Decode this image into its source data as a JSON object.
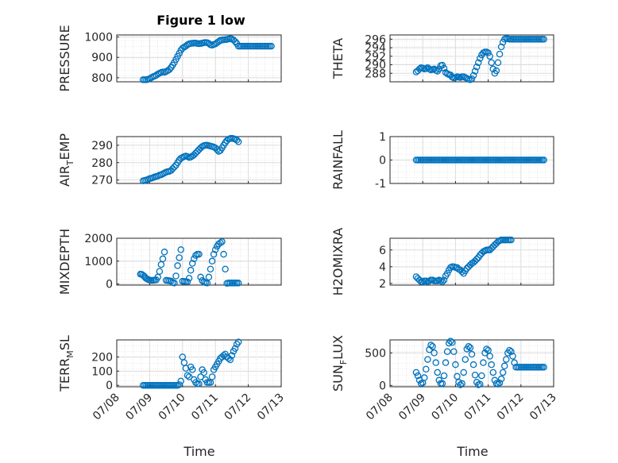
{
  "figure": {
    "title": "Figure 1 low",
    "xlabel": "Time",
    "x_tick_labels": [
      "07/08",
      "07/09",
      "07/10",
      "07/11",
      "07/12",
      "07/13"
    ],
    "marker_color": "#0072BD",
    "grid": true
  },
  "chart_data": [
    {
      "type": "scatter",
      "ylabel_main": "PRESSURE",
      "ylabel_sub": "",
      "ylabel_rest": "",
      "ylim": [
        780,
        1010
      ],
      "yticks": [
        800,
        900,
        1000
      ],
      "x": [
        0.8,
        0.85,
        0.9,
        0.95,
        1.0,
        1.05,
        1.1,
        1.15,
        1.2,
        1.25,
        1.3,
        1.35,
        1.4,
        1.45,
        1.5,
        1.55,
        1.6,
        1.65,
        1.7,
        1.75,
        1.8,
        1.85,
        1.9,
        1.95,
        2.0,
        2.05,
        2.1,
        2.15,
        2.2,
        2.25,
        2.3,
        2.35,
        2.4,
        2.45,
        2.5,
        2.55,
        2.6,
        2.65,
        2.7,
        2.75,
        2.8,
        2.85,
        2.9,
        2.95,
        3.0,
        3.05,
        3.1,
        3.15,
        3.2,
        3.25,
        3.3,
        3.35,
        3.4,
        3.45,
        3.5,
        3.55,
        3.6,
        3.65,
        3.7,
        3.75,
        3.8,
        3.85,
        3.9,
        3.95,
        4.0,
        4.05,
        4.1,
        4.15,
        4.2,
        4.25,
        4.3,
        4.35,
        4.4,
        4.45,
        4.5,
        4.55,
        4.6,
        4.65,
        4.7
      ],
      "y": [
        790,
        790,
        790,
        792,
        795,
        800,
        805,
        808,
        812,
        818,
        822,
        826,
        828,
        827,
        830,
        835,
        840,
        850,
        862,
        875,
        890,
        905,
        920,
        935,
        945,
        950,
        955,
        962,
        966,
        968,
        969,
        970,
        970,
        968,
        967,
        968,
        970,
        972,
        973,
        972,
        968,
        962,
        960,
        963,
        966,
        972,
        978,
        983,
        985,
        986,
        987,
        988,
        990,
        992,
        990,
        985,
        978,
        968,
        955,
        955,
        955,
        955,
        955,
        955,
        955,
        955,
        955,
        955,
        955,
        955,
        955,
        955,
        955,
        955,
        955,
        955,
        955,
        955,
        955
      ]
    },
    {
      "type": "scatter",
      "ylabel_main": "THETA",
      "ylabel_sub": "",
      "ylabel_rest": "",
      "ylim": [
        286,
        297
      ],
      "yticks": [
        288,
        290,
        292,
        294,
        296
      ],
      "x": [
        0.8,
        0.85,
        0.9,
        0.95,
        1.0,
        1.05,
        1.1,
        1.15,
        1.2,
        1.25,
        1.3,
        1.35,
        1.4,
        1.45,
        1.5,
        1.55,
        1.6,
        1.65,
        1.7,
        1.75,
        1.8,
        1.85,
        1.9,
        1.95,
        2.0,
        2.05,
        2.1,
        2.15,
        2.2,
        2.25,
        2.3,
        2.35,
        2.4,
        2.45,
        2.5,
        2.55,
        2.6,
        2.65,
        2.7,
        2.75,
        2.8,
        2.85,
        2.9,
        2.95,
        3.0,
        3.05,
        3.1,
        3.15,
        3.2,
        3.25,
        3.3,
        3.35,
        3.4,
        3.45,
        3.5,
        3.55,
        3.6,
        3.65,
        3.7,
        3.75,
        3.8,
        3.85,
        3.9,
        3.95,
        4.0,
        4.05,
        4.1,
        4.15,
        4.2,
        4.25,
        4.3,
        4.35,
        4.4,
        4.45,
        4.5,
        4.55,
        4.6,
        4.65,
        4.7
      ],
      "y": [
        288.3,
        288.6,
        289.0,
        289.3,
        289.2,
        289.0,
        289.1,
        289.3,
        289.0,
        288.8,
        288.9,
        289.0,
        288.7,
        288.5,
        289.0,
        289.8,
        289.9,
        289.2,
        288.2,
        287.9,
        287.7,
        287.6,
        287.1,
        286.9,
        287.0,
        287.2,
        287.1,
        287.0,
        287.2,
        287.2,
        287.0,
        286.8,
        286.6,
        286.5,
        286.7,
        287.5,
        288.5,
        289.5,
        290.5,
        291.5,
        292.3,
        292.8,
        293.0,
        293.0,
        292.8,
        292.0,
        290.5,
        289.0,
        288.0,
        288.6,
        290.5,
        292.5,
        294.2,
        295.3,
        296.0,
        296.2,
        296.1,
        296.0,
        296.0,
        296.0,
        296.0,
        296.0,
        296.0,
        296.0,
        296.0,
        296.0,
        296.0,
        296.0,
        296.0,
        296.0,
        296.0,
        296.0,
        296.0,
        296.0,
        296.0,
        296.0,
        296.0,
        296.0,
        296.0
      ]
    },
    {
      "type": "scatter",
      "ylabel_main": "AIR",
      "ylabel_sub": "T",
      "ylabel_rest": "EMP",
      "ylim": [
        268,
        295
      ],
      "yticks": [
        270,
        280,
        290
      ],
      "x": [
        0.8,
        0.85,
        0.9,
        0.95,
        1.0,
        1.05,
        1.1,
        1.15,
        1.2,
        1.25,
        1.3,
        1.35,
        1.4,
        1.45,
        1.5,
        1.55,
        1.6,
        1.65,
        1.7,
        1.75,
        1.8,
        1.85,
        1.9,
        1.95,
        2.0,
        2.05,
        2.1,
        2.15,
        2.2,
        2.25,
        2.3,
        2.35,
        2.4,
        2.45,
        2.5,
        2.55,
        2.6,
        2.65,
        2.7,
        2.75,
        2.8,
        2.85,
        2.9,
        2.95,
        3.0,
        3.05,
        3.1,
        3.15,
        3.2,
        3.25,
        3.3,
        3.35,
        3.4,
        3.45,
        3.5,
        3.55,
        3.6,
        3.65,
        3.7
      ],
      "y": [
        269.5,
        269.8,
        270.0,
        270.3,
        270.8,
        271.0,
        271.3,
        271.8,
        272.0,
        272.3,
        272.8,
        273.0,
        273.5,
        274.0,
        274.5,
        274.8,
        275.0,
        275.5,
        276.5,
        277.5,
        278.5,
        280.0,
        281.5,
        282.5,
        283.0,
        283.5,
        283.8,
        283.5,
        283.0,
        283.2,
        283.8,
        284.5,
        285.5,
        286.5,
        287.5,
        288.5,
        289.3,
        289.8,
        290.0,
        290.0,
        289.8,
        289.5,
        289.3,
        289.0,
        288.5,
        287.5,
        286.5,
        287.0,
        288.5,
        290.0,
        291.5,
        292.7,
        293.5,
        293.9,
        294.0,
        293.8,
        293.5,
        293.0,
        292.0
      ]
    },
    {
      "type": "scatter",
      "ylabel_main": "RAINFALL",
      "ylabel_sub": "",
      "ylabel_rest": "",
      "ylim": [
        -1,
        1
      ],
      "yticks": [
        -1,
        0,
        1
      ],
      "x": [
        0.8,
        0.85,
        0.9,
        0.95,
        1.0,
        1.05,
        1.1,
        1.15,
        1.2,
        1.25,
        1.3,
        1.35,
        1.4,
        1.45,
        1.5,
        1.55,
        1.6,
        1.65,
        1.7,
        1.75,
        1.8,
        1.85,
        1.9,
        1.95,
        2.0,
        2.05,
        2.1,
        2.15,
        2.2,
        2.25,
        2.3,
        2.35,
        2.4,
        2.45,
        2.5,
        2.55,
        2.6,
        2.65,
        2.7,
        2.75,
        2.8,
        2.85,
        2.9,
        2.95,
        3.0,
        3.05,
        3.1,
        3.15,
        3.2,
        3.25,
        3.3,
        3.35,
        3.4,
        3.45,
        3.5,
        3.55,
        3.6,
        3.65,
        3.7,
        3.75,
        3.8,
        3.85,
        3.9,
        3.95,
        4.0,
        4.05,
        4.1,
        4.15,
        4.2,
        4.25,
        4.3,
        4.35,
        4.4,
        4.45,
        4.5,
        4.55,
        4.6,
        4.65,
        4.7
      ],
      "y": [
        0,
        0,
        0,
        0,
        0,
        0,
        0,
        0,
        0,
        0,
        0,
        0,
        0,
        0,
        0,
        0,
        0,
        0,
        0,
        0,
        0,
        0,
        0,
        0,
        0,
        0,
        0,
        0,
        0,
        0,
        0,
        0,
        0,
        0,
        0,
        0,
        0,
        0,
        0,
        0,
        0,
        0,
        0,
        0,
        0,
        0,
        0,
        0,
        0,
        0,
        0,
        0,
        0,
        0,
        0,
        0,
        0,
        0,
        0,
        0,
        0,
        0,
        0,
        0,
        0,
        0,
        0,
        0,
        0,
        0,
        0,
        0,
        0,
        0,
        0,
        0,
        0,
        0,
        0
      ]
    },
    {
      "type": "scatter",
      "ylabel_main": "MIXDEPTH",
      "ylabel_sub": "",
      "ylabel_rest": "",
      "ylim": [
        -50,
        2000
      ],
      "yticks": [
        0,
        1000,
        2000
      ],
      "x": [
        0.72,
        0.76,
        0.8,
        0.84,
        0.88,
        0.92,
        0.96,
        1.0,
        1.05,
        1.1,
        1.15,
        1.2,
        1.25,
        1.3,
        1.35,
        1.4,
        1.45,
        1.5,
        1.55,
        1.6,
        1.65,
        1.7,
        1.75,
        1.8,
        1.85,
        1.9,
        1.95,
        2.0,
        2.05,
        2.1,
        2.15,
        2.2,
        2.25,
        2.3,
        2.35,
        2.4,
        2.45,
        2.5,
        2.55,
        2.6,
        2.65,
        2.7,
        2.75,
        2.8,
        2.85,
        2.9,
        2.95,
        3.0,
        3.05,
        3.1,
        3.15,
        3.2,
        3.25,
        3.3,
        3.35,
        3.4,
        3.45,
        3.5,
        3.55,
        3.6,
        3.65,
        3.7
      ],
      "y": [
        430,
        420,
        380,
        330,
        260,
        220,
        190,
        170,
        160,
        160,
        170,
        180,
        300,
        550,
        850,
        1100,
        1400,
        160,
        150,
        140,
        130,
        60,
        40,
        350,
        800,
        1150,
        1500,
        120,
        110,
        100,
        95,
        250,
        600,
        900,
        1100,
        1250,
        1300,
        1300,
        300,
        150,
        80,
        60,
        40,
        300,
        650,
        1000,
        1300,
        1500,
        1650,
        1750,
        1800,
        1850,
        1300,
        650,
        30,
        40,
        40,
        40,
        40,
        40,
        40,
        40
      ]
    },
    {
      "type": "scatter",
      "ylabel_main": "H2OMIXRA",
      "ylabel_sub": "",
      "ylabel_rest": "",
      "ylim": [
        1.8,
        7.4
      ],
      "yticks": [
        2,
        4,
        6
      ],
      "x": [
        0.8,
        0.85,
        0.9,
        0.95,
        1.0,
        1.05,
        1.1,
        1.15,
        1.2,
        1.25,
        1.3,
        1.35,
        1.4,
        1.45,
        1.5,
        1.55,
        1.6,
        1.65,
        1.7,
        1.75,
        1.8,
        1.85,
        1.9,
        1.95,
        2.0,
        2.05,
        2.1,
        2.15,
        2.2,
        2.25,
        2.3,
        2.35,
        2.4,
        2.45,
        2.5,
        2.55,
        2.6,
        2.65,
        2.7,
        2.75,
        2.8,
        2.85,
        2.9,
        2.95,
        3.0,
        3.05,
        3.1,
        3.15,
        3.2,
        3.25,
        3.3,
        3.35,
        3.4,
        3.45,
        3.5,
        3.55,
        3.6,
        3.65,
        3.7
      ],
      "y": [
        2.8,
        2.6,
        2.4,
        2.2,
        2.2,
        2.3,
        2.3,
        2.2,
        2.3,
        2.4,
        2.4,
        2.3,
        2.3,
        2.3,
        2.4,
        2.3,
        2.2,
        2.4,
        2.9,
        3.2,
        3.6,
        3.9,
        4.0,
        4.0,
        3.9,
        3.9,
        3.7,
        3.6,
        3.4,
        3.2,
        3.5,
        3.8,
        4.0,
        4.2,
        4.4,
        4.5,
        4.7,
        4.9,
        5.1,
        5.4,
        5.6,
        5.8,
        5.9,
        6.0,
        6.0,
        6.0,
        6.2,
        6.4,
        6.6,
        6.8,
        7.0,
        7.1,
        7.2,
        7.2,
        7.2,
        7.2,
        7.2,
        7.2,
        7.2
      ]
    },
    {
      "type": "scatter",
      "ylabel_main": "TERR",
      "ylabel_sub": "M",
      "ylabel_rest": "SL",
      "ylim": [
        -10,
        320
      ],
      "yticks": [
        0,
        100,
        200
      ],
      "x": [
        0.8,
        0.85,
        0.9,
        0.95,
        1.0,
        1.05,
        1.1,
        1.15,
        1.2,
        1.25,
        1.3,
        1.35,
        1.4,
        1.45,
        1.5,
        1.55,
        1.6,
        1.65,
        1.7,
        1.75,
        1.8,
        1.85,
        1.9,
        1.95,
        2.0,
        2.05,
        2.1,
        2.15,
        2.2,
        2.25,
        2.3,
        2.35,
        2.4,
        2.45,
        2.5,
        2.55,
        2.6,
        2.65,
        2.7,
        2.75,
        2.8,
        2.85,
        2.9,
        2.95,
        3.0,
        3.05,
        3.1,
        3.15,
        3.2,
        3.25,
        3.3,
        3.35,
        3.4,
        3.45,
        3.5,
        3.55,
        3.6,
        3.65,
        3.7
      ],
      "y": [
        0,
        0,
        0,
        0,
        0,
        0,
        0,
        0,
        0,
        0,
        0,
        0,
        0,
        0,
        0,
        0,
        0,
        0,
        0,
        0,
        0,
        0,
        5,
        30,
        200,
        160,
        120,
        70,
        60,
        130,
        110,
        40,
        20,
        10,
        10,
        60,
        110,
        90,
        40,
        20,
        20,
        20,
        60,
        110,
        130,
        150,
        170,
        190,
        200,
        210,
        220,
        200,
        190,
        180,
        210,
        240,
        260,
        290,
        305
      ]
    },
    {
      "type": "scatter",
      "ylabel_main": "SUN",
      "ylabel_sub": "F",
      "ylabel_rest": "LUX",
      "ylim": [
        -20,
        700
      ],
      "yticks": [
        0,
        500
      ],
      "x": [
        0.8,
        0.85,
        0.9,
        0.95,
        1.0,
        1.05,
        1.1,
        1.15,
        1.2,
        1.25,
        1.3,
        1.35,
        1.4,
        1.45,
        1.5,
        1.55,
        1.6,
        1.65,
        1.7,
        1.75,
        1.8,
        1.85,
        1.9,
        1.95,
        2.0,
        2.05,
        2.1,
        2.15,
        2.2,
        2.25,
        2.3,
        2.35,
        2.4,
        2.45,
        2.5,
        2.55,
        2.6,
        2.65,
        2.7,
        2.75,
        2.8,
        2.85,
        2.9,
        2.95,
        3.0,
        3.05,
        3.1,
        3.15,
        3.2,
        3.25,
        3.3,
        3.35,
        3.4,
        3.45,
        3.5,
        3.55,
        3.6,
        3.65,
        3.7,
        3.75,
        3.8,
        3.85,
        3.9,
        3.95,
        4.0,
        4.05,
        4.1,
        4.15,
        4.2,
        4.25,
        4.3,
        4.35,
        4.4,
        4.45,
        4.5,
        4.55,
        4.6,
        4.65,
        4.7
      ],
      "y": [
        200,
        150,
        80,
        30,
        40,
        120,
        250,
        400,
        550,
        620,
        600,
        500,
        350,
        200,
        80,
        30,
        30,
        150,
        350,
        520,
        650,
        680,
        660,
        520,
        320,
        140,
        50,
        10,
        30,
        200,
        400,
        560,
        600,
        580,
        480,
        320,
        160,
        50,
        10,
        20,
        150,
        350,
        500,
        560,
        540,
        450,
        320,
        200,
        80,
        30,
        20,
        40,
        100,
        200,
        300,
        400,
        500,
        540,
        520,
        450,
        350,
        280,
        280,
        280,
        280,
        280,
        280,
        280,
        280,
        280,
        280,
        280,
        280,
        280,
        280,
        280,
        280,
        280,
        280
      ]
    }
  ]
}
